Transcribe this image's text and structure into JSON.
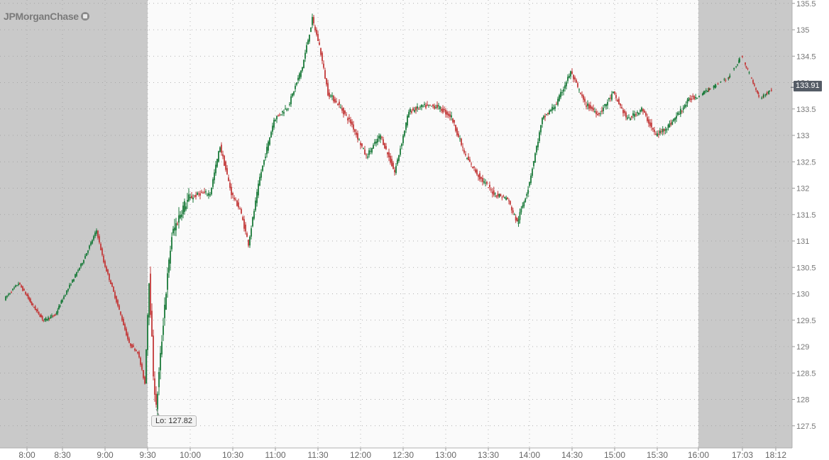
{
  "app": {
    "logo_text": "JPMorganChase"
  },
  "chart_data": {
    "type": "candlestick",
    "title": "",
    "xlabel": "",
    "ylabel": "",
    "ylim": [
      127.25,
      135.5
    ],
    "y_ticks": [
      "127.5",
      "128",
      "128.5",
      "129",
      "129.5",
      "130",
      "130.5",
      "131",
      "131.5",
      "132",
      "132.5",
      "133",
      "133.5",
      "134",
      "134.5",
      "135",
      "135.5"
    ],
    "x_ticks": [
      "8:00",
      "8:30",
      "9:00",
      "9:30",
      "10:00",
      "10:30",
      "11:00",
      "11:30",
      "12:00",
      "12:30",
      "13:00",
      "13:30",
      "14:00",
      "14:30",
      "15:00",
      "15:30",
      "16:00",
      "17:03",
      "18:12"
    ],
    "sessions": {
      "pre_market_end": "9:30",
      "after_hours_start": "16:00"
    },
    "grid": true,
    "last_price": "133.91",
    "low_annotation": {
      "label": "Lo: 127.82",
      "value": 127.82,
      "time": "9:36"
    },
    "up_color": "#1a7a3a",
    "down_color": "#c23a3a",
    "price_path": [
      [
        "7:45",
        129.9
      ],
      [
        "7:55",
        130.2
      ],
      [
        "8:05",
        129.8
      ],
      [
        "8:15",
        129.5
      ],
      [
        "8:25",
        129.6
      ],
      [
        "8:35",
        130.1
      ],
      [
        "8:45",
        130.6
      ],
      [
        "8:55",
        131.2
      ],
      [
        "9:00",
        130.6
      ],
      [
        "9:05",
        130.2
      ],
      [
        "9:12",
        129.6
      ],
      [
        "9:18",
        129.05
      ],
      [
        "9:24",
        128.9
      ],
      [
        "9:29",
        128.3
      ],
      [
        "9:32",
        130.3
      ],
      [
        "9:35",
        128.5
      ],
      [
        "9:37",
        127.82
      ],
      [
        "9:43",
        129.8
      ],
      [
        "9:48",
        131.1
      ],
      [
        "9:55",
        131.6
      ],
      [
        "10:00",
        131.8
      ],
      [
        "10:08",
        131.9
      ],
      [
        "10:15",
        131.9
      ],
      [
        "10:22",
        132.8
      ],
      [
        "10:30",
        131.9
      ],
      [
        "10:36",
        131.6
      ],
      [
        "10:42",
        130.95
      ],
      [
        "10:50",
        132.2
      ],
      [
        "11:00",
        133.3
      ],
      [
        "11:10",
        133.55
      ],
      [
        "11:20",
        134.3
      ],
      [
        "11:27",
        135.2
      ],
      [
        "11:32",
        134.7
      ],
      [
        "11:38",
        133.8
      ],
      [
        "11:45",
        133.6
      ],
      [
        "11:55",
        133.2
      ],
      [
        "12:05",
        132.6
      ],
      [
        "12:15",
        133.0
      ],
      [
        "12:25",
        132.3
      ],
      [
        "12:35",
        133.45
      ],
      [
        "12:45",
        133.55
      ],
      [
        "12:55",
        133.55
      ],
      [
        "13:05",
        133.35
      ],
      [
        "13:15",
        132.6
      ],
      [
        "13:25",
        132.2
      ],
      [
        "13:35",
        131.9
      ],
      [
        "13:45",
        131.8
      ],
      [
        "13:52",
        131.35
      ],
      [
        "14:00",
        132.0
      ],
      [
        "14:10",
        133.3
      ],
      [
        "14:20",
        133.6
      ],
      [
        "14:30",
        134.2
      ],
      [
        "14:40",
        133.6
      ],
      [
        "14:50",
        133.4
      ],
      [
        "15:00",
        133.8
      ],
      [
        "15:10",
        133.3
      ],
      [
        "15:20",
        133.5
      ],
      [
        "15:30",
        133.0
      ],
      [
        "15:40",
        133.2
      ],
      [
        "15:55",
        133.7
      ],
      [
        "16:20",
        133.9
      ],
      [
        "16:45",
        134.1
      ],
      [
        "17:03",
        134.5
      ],
      [
        "17:40",
        133.7
      ],
      [
        "18:12",
        133.91
      ]
    ]
  }
}
